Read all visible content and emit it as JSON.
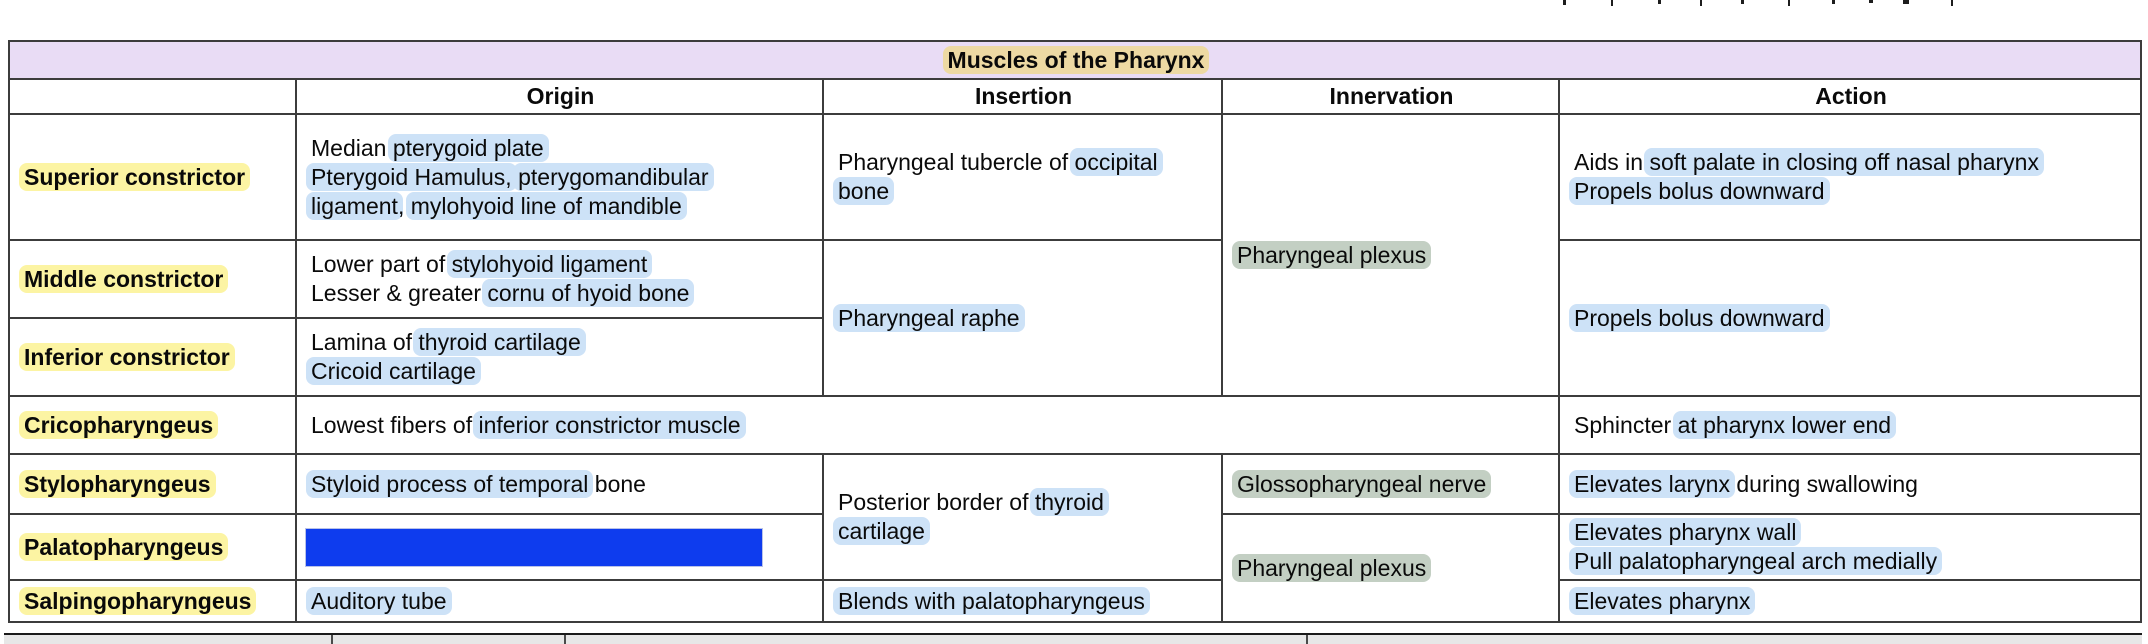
{
  "title": "Muscles of the Pharynx",
  "columns": [
    "",
    "Origin",
    "Insertion",
    "Innervation",
    "Action"
  ],
  "colors": {
    "title_background": "#e9dcf5",
    "name_highlight_yellow": "#fcf4a3",
    "term_highlight_blue": "#cde2f7",
    "nerve_highlight_green": "#c3cfc3",
    "title_highlight_tan": "#edd9a3",
    "redaction_blue": "#0e3cee",
    "table_border": "#3c3c3c"
  },
  "cells": {
    "superior": {
      "name": [
        [
          {
            "t": "Superior constrictor",
            "h": "yellow"
          }
        ]
      ],
      "origin": [
        [
          {
            "t": "Median "
          },
          {
            "t": "pterygoid plate",
            "h": "blue"
          }
        ],
        [
          {
            "t": "Pterygoid Hamulus,",
            "h": "blue"
          },
          {
            "t": " "
          },
          {
            "t": "pterygomandibular",
            "h": "blue"
          }
        ],
        [
          {
            "t": "ligament",
            "h": "blue"
          },
          {
            "t": ", "
          },
          {
            "t": "mylohyoid line of mandible",
            "h": "blue"
          }
        ]
      ],
      "insertion": [
        [
          {
            "t": "Pharyngeal tubercle of "
          },
          {
            "t": "occipital",
            "h": "blue"
          }
        ],
        [
          {
            "t": "bone",
            "h": "blue"
          }
        ]
      ],
      "action": [
        [
          {
            "t": "Aids in "
          },
          {
            "t": "soft palate in closing off nasal pharynx",
            "h": "blue"
          }
        ],
        [
          {
            "t": "Propels bolus downward",
            "h": "blue"
          }
        ]
      ]
    },
    "middle": {
      "name": [
        [
          {
            "t": "Middle constrictor",
            "h": "yellow"
          }
        ]
      ],
      "origin": [
        [
          {
            "t": "Lower part of "
          },
          {
            "t": "stylohyoid ligament",
            "h": "blue"
          }
        ],
        [
          {
            "t": "Lesser & greater "
          },
          {
            "t": "cornu of hyoid bone",
            "h": "blue"
          }
        ]
      ]
    },
    "inferior": {
      "name": [
        [
          {
            "t": "Inferior constrictor",
            "h": "yellow"
          }
        ]
      ],
      "origin": [
        [
          {
            "t": "Lamina of "
          },
          {
            "t": "thyroid cartilage",
            "h": "blue"
          }
        ],
        [
          {
            "t": "Cricoid cartilage",
            "h": "blue"
          }
        ]
      ]
    },
    "constrictors_innervation": [
      [
        {
          "t": "Pharyngeal plexus",
          "h": "green"
        }
      ]
    ],
    "mid_inf_insertion": [
      [
        {
          "t": "Pharyngeal raphe",
          "h": "blue"
        }
      ]
    ],
    "mid_inf_action": [
      [
        {
          "t": "Propels bolus downward",
          "h": "blue"
        }
      ]
    ],
    "crico": {
      "name": [
        [
          {
            "t": "Cricopharyngeus",
            "h": "yellow"
          }
        ]
      ],
      "origin_span": [
        [
          {
            "t": "Lowest fibers of "
          },
          {
            "t": "inferior constrictor muscle",
            "h": "blue"
          }
        ]
      ],
      "action": [
        [
          {
            "t": "Sphincter "
          },
          {
            "t": "at pharynx lower end",
            "h": "blue"
          }
        ]
      ]
    },
    "stylo": {
      "name": [
        [
          {
            "t": "Stylopharyngeus",
            "h": "yellow"
          }
        ]
      ],
      "origin": [
        [
          {
            "t": "Styloid process of temporal",
            "h": "blue"
          },
          {
            "t": " bone"
          }
        ]
      ],
      "innervation": [
        [
          {
            "t": "Glossopharyngeal nerve",
            "h": "green"
          }
        ]
      ],
      "action": [
        [
          {
            "t": "Elevates larynx",
            "h": "blue"
          },
          {
            "t": " during swallowing"
          }
        ]
      ]
    },
    "stylo_palato_insertion": [
      [
        {
          "t": "Posterior border of "
        },
        {
          "t": "thyroid",
          "h": "blue"
        }
      ],
      [
        {
          "t": "cartilage",
          "h": "blue"
        }
      ]
    ],
    "palato": {
      "name": [
        [
          {
            "t": "Palatopharyngeus",
            "h": "yellow"
          }
        ]
      ],
      "action": [
        [
          {
            "t": "Elevates pharynx wall",
            "h": "blue"
          }
        ],
        [
          {
            "t": "Pull palatopharyngeal arch medially",
            "h": "blue"
          }
        ]
      ]
    },
    "palato_salpingo_innervation": [
      [
        {
          "t": "Pharyngeal plexus",
          "h": "green"
        }
      ]
    ],
    "salpingo": {
      "name": [
        [
          {
            "t": "Salpingopharyngeus",
            "h": "yellow"
          }
        ]
      ],
      "origin": [
        [
          {
            "t": "Auditory tube",
            "h": "blue"
          }
        ]
      ],
      "insertion": [
        [
          {
            "t": "Blends with palatopharyngeus",
            "h": "blue"
          }
        ]
      ],
      "action": [
        [
          {
            "t": "Elevates pharynx",
            "h": "blue"
          }
        ]
      ]
    }
  }
}
